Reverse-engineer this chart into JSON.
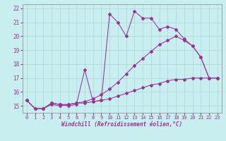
{
  "xlabel": "Windchill (Refroidissement éolien,°C)",
  "bg_color": "#c8eef0",
  "grid_color": "#b0d8dd",
  "line_color": "#993399",
  "xlim": [
    -0.5,
    23.5
  ],
  "ylim": [
    14.5,
    22.3
  ],
  "xticks": [
    0,
    1,
    2,
    3,
    4,
    5,
    6,
    7,
    8,
    9,
    10,
    11,
    12,
    13,
    14,
    15,
    16,
    17,
    18,
    19,
    20,
    21,
    22,
    23
  ],
  "yticks": [
    15,
    16,
    17,
    18,
    19,
    20,
    21,
    22
  ],
  "curve_spiky_x": [
    0,
    1,
    2,
    3,
    4,
    5,
    6,
    7,
    8,
    9,
    10,
    11,
    12,
    13,
    14,
    15,
    16,
    17,
    18,
    19,
    20,
    21,
    22,
    23
  ],
  "curve_spiky_y": [
    15.4,
    14.8,
    14.8,
    15.2,
    15.1,
    15.0,
    15.1,
    17.6,
    15.3,
    15.4,
    21.6,
    21.0,
    20.0,
    21.8,
    21.3,
    21.3,
    20.5,
    20.7,
    20.5,
    19.8,
    19.3,
    18.5,
    17.0,
    17.0
  ],
  "curve_lower_x": [
    0,
    1,
    2,
    3,
    4,
    5,
    6,
    7,
    8,
    9,
    10,
    11,
    12,
    13,
    14,
    15,
    16,
    17,
    18,
    19,
    20,
    21,
    22,
    23
  ],
  "curve_lower_y": [
    15.4,
    14.8,
    14.8,
    15.1,
    15.0,
    15.1,
    15.2,
    15.2,
    15.3,
    15.4,
    15.5,
    15.7,
    15.9,
    16.1,
    16.3,
    16.5,
    16.6,
    16.8,
    16.9,
    16.9,
    17.0,
    17.0,
    17.0,
    17.0
  ],
  "curve_upper_x": [
    0,
    1,
    2,
    3,
    4,
    5,
    6,
    7,
    8,
    9,
    10,
    11,
    12,
    13,
    14,
    15,
    16,
    17,
    18,
    19,
    20,
    21,
    22,
    23
  ],
  "curve_upper_y": [
    15.4,
    14.8,
    14.8,
    15.2,
    15.1,
    15.1,
    15.2,
    15.3,
    15.5,
    15.8,
    16.2,
    16.7,
    17.3,
    17.9,
    18.4,
    18.9,
    19.4,
    19.7,
    20.0,
    19.7,
    19.3,
    18.5,
    17.0,
    17.0
  ]
}
